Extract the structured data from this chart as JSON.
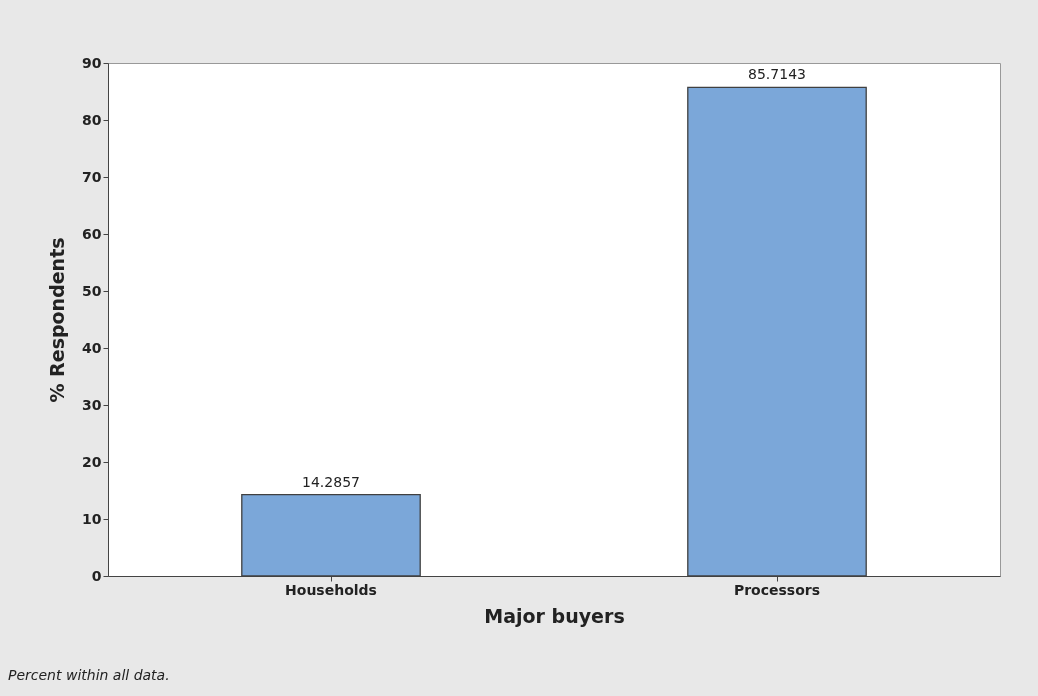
{
  "chart_data": {
    "type": "bar",
    "xlabel": "Major buyers",
    "ylabel": "% Respondents",
    "categories": [
      "Households",
      "Processors"
    ],
    "values": [
      14.2857,
      85.7143
    ],
    "color": "#7ba7d9",
    "ylim": [
      0,
      90
    ],
    "yticks": [
      0,
      10,
      20,
      30,
      40,
      50,
      60,
      70,
      80,
      90
    ],
    "data_labels": true,
    "grid": false,
    "annotations": [
      "Percent within all data."
    ]
  }
}
